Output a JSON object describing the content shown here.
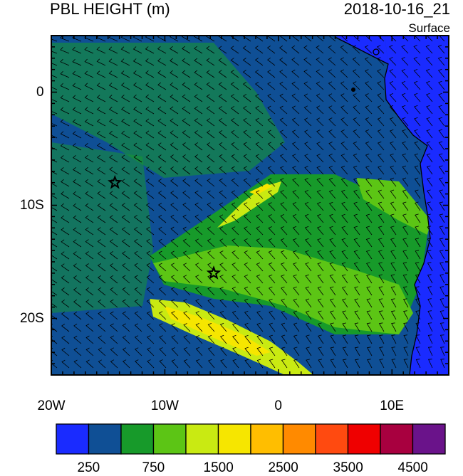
{
  "header": {
    "title": "PBL HEIGHT (m)",
    "datetime": "2018-10-16_21",
    "level": "Surface"
  },
  "map": {
    "lon_ticks": [
      {
        "value": -20,
        "label": "20W"
      },
      {
        "value": -10,
        "label": "10W"
      },
      {
        "value": 0,
        "label": "0"
      },
      {
        "value": 10,
        "label": "10E"
      }
    ],
    "lat_ticks": [
      {
        "value": 0,
        "label": "0"
      },
      {
        "value": -10,
        "label": "10S"
      },
      {
        "value": -20,
        "label": "20S"
      }
    ],
    "lon_range": [
      -20,
      15
    ],
    "lat_range": [
      -25,
      5
    ],
    "markers": [
      {
        "lon": -14.4,
        "lat": -8.0,
        "symbol": "star"
      },
      {
        "lon": -5.7,
        "lat": -16.0,
        "symbol": "star"
      }
    ]
  },
  "colorbar": {
    "colors": [
      "#1a2bff",
      "#0f4f95",
      "#179a2a",
      "#5cc515",
      "#c9ea12",
      "#f6e600",
      "#ffbe00",
      "#ff8a00",
      "#ff4a10",
      "#ef0000",
      "#a8003f",
      "#6a138a"
    ],
    "labels": [
      "250",
      "750",
      "1500",
      "2500",
      "3500",
      "4500"
    ]
  }
}
